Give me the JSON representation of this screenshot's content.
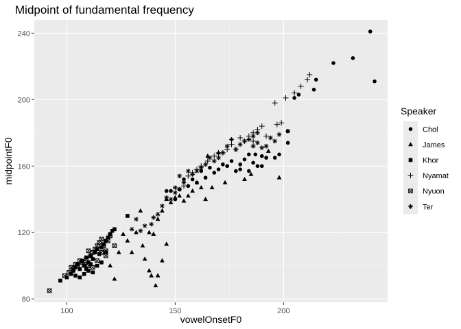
{
  "chart_data": {
    "type": "scatter",
    "title": "Midpoint of fundamental frequency",
    "xlabel": "vowelOnsetF0",
    "ylabel": "midpointF0",
    "xlim": [
      85,
      248
    ],
    "ylim": [
      78,
      248
    ],
    "x_ticks": [
      100,
      150,
      200
    ],
    "y_ticks": [
      80,
      120,
      160,
      200,
      240
    ],
    "grid": true,
    "legend": {
      "title": "Speaker",
      "placement": "right"
    },
    "series": [
      {
        "name": "Chol",
        "shape": "circle",
        "points": [
          [
            240,
            241
          ],
          [
            242,
            211
          ],
          [
            232,
            225
          ],
          [
            223,
            222
          ],
          [
            215,
            212
          ],
          [
            214,
            206
          ],
          [
            207,
            203
          ],
          [
            205,
            201
          ],
          [
            202,
            181
          ],
          [
            202,
            174
          ],
          [
            198,
            167
          ],
          [
            196,
            165
          ],
          [
            192,
            165
          ],
          [
            190,
            166
          ],
          [
            190,
            160
          ],
          [
            187,
            167
          ],
          [
            186,
            162
          ],
          [
            184,
            157
          ],
          [
            182,
            164
          ],
          [
            180,
            161
          ],
          [
            178,
            157
          ],
          [
            176,
            163
          ],
          [
            174,
            160
          ],
          [
            172,
            161
          ],
          [
            170,
            158
          ],
          [
            168,
            156
          ],
          [
            166,
            159
          ],
          [
            164,
            153
          ],
          [
            162,
            157
          ],
          [
            160,
            150
          ],
          [
            158,
            152
          ],
          [
            156,
            148
          ],
          [
            154,
            152
          ],
          [
            152,
            146
          ],
          [
            148,
            145
          ],
          [
            150,
            140
          ],
          [
            146,
            145
          ],
          [
            188,
            160
          ],
          [
            184,
            167
          ],
          [
            180,
            158
          ]
        ]
      },
      {
        "name": "James",
        "shape": "triangle",
        "points": [
          [
            198,
            153
          ],
          [
            193,
            169
          ],
          [
            185,
            155
          ],
          [
            182,
            152
          ],
          [
            173,
            150
          ],
          [
            170,
            168
          ],
          [
            167,
            147
          ],
          [
            165,
            166
          ],
          [
            160,
            150
          ],
          [
            158,
            145
          ],
          [
            156,
            142
          ],
          [
            154,
            139
          ],
          [
            152,
            142
          ],
          [
            150,
            141
          ],
          [
            148,
            138
          ],
          [
            146,
            140
          ],
          [
            144,
            133
          ],
          [
            142,
            128
          ],
          [
            140,
            119
          ],
          [
            139,
            94
          ],
          [
            138,
            97
          ],
          [
            136,
            104
          ],
          [
            135,
            112
          ],
          [
            134,
            133
          ],
          [
            132,
            120
          ],
          [
            130,
            108
          ],
          [
            128,
            115
          ],
          [
            126,
            119
          ],
          [
            124,
            108
          ],
          [
            122,
            92
          ],
          [
            120,
            100
          ],
          [
            146,
            113
          ],
          [
            142,
            94
          ],
          [
            144,
            103
          ],
          [
            141,
            88
          ],
          [
            138,
            120
          ],
          [
            162,
            147
          ],
          [
            164,
            140
          ]
        ]
      },
      {
        "name": "Khor",
        "shape": "square",
        "points": [
          [
            97,
            91
          ],
          [
            100,
            93
          ],
          [
            102,
            95
          ],
          [
            103,
            97
          ],
          [
            104,
            99
          ],
          [
            105,
            101
          ],
          [
            106,
            98
          ],
          [
            107,
            103
          ],
          [
            108,
            100
          ],
          [
            109,
            105
          ],
          [
            110,
            102
          ],
          [
            111,
            106
          ],
          [
            112,
            104
          ],
          [
            113,
            108
          ],
          [
            114,
            110
          ],
          [
            115,
            107
          ],
          [
            116,
            111
          ],
          [
            117,
            113
          ],
          [
            118,
            115
          ],
          [
            119,
            117
          ],
          [
            120,
            119
          ],
          [
            121,
            121
          ],
          [
            122,
            122
          ],
          [
            128,
            130
          ],
          [
            110,
            97
          ],
          [
            112,
            96
          ],
          [
            114,
            100
          ],
          [
            106,
            93
          ],
          [
            108,
            95
          ],
          [
            116,
            102
          ],
          [
            118,
            108
          ],
          [
            104,
            94
          ],
          [
            111,
            101
          ],
          [
            109,
            98
          ]
        ]
      },
      {
        "name": "Nyamat",
        "shape": "plus",
        "points": [
          [
            212,
            215
          ],
          [
            211,
            212
          ],
          [
            208,
            208
          ],
          [
            205,
            204
          ],
          [
            201,
            201
          ],
          [
            196,
            198
          ],
          [
            199,
            186
          ],
          [
            197,
            185
          ],
          [
            190,
            184
          ],
          [
            188,
            182
          ],
          [
            186,
            180
          ],
          [
            184,
            178
          ],
          [
            182,
            175
          ],
          [
            180,
            177
          ],
          [
            178,
            170
          ],
          [
            176,
            173
          ],
          [
            174,
            170
          ],
          [
            172,
            168
          ],
          [
            170,
            168
          ],
          [
            168,
            166
          ],
          [
            165,
            163
          ],
          [
            162,
            160
          ],
          [
            160,
            158
          ],
          [
            158,
            156
          ],
          [
            156,
            154
          ],
          [
            154,
            148
          ],
          [
            192,
            178
          ],
          [
            186,
            175
          ]
        ]
      },
      {
        "name": "Nyuon",
        "shape": "boxtimes",
        "points": [
          [
            92,
            85
          ],
          [
            99,
            94
          ],
          [
            101,
            96
          ],
          [
            103,
            98
          ],
          [
            105,
            100
          ],
          [
            107,
            102
          ],
          [
            109,
            104
          ],
          [
            110,
            109
          ],
          [
            111,
            106
          ],
          [
            112,
            108
          ],
          [
            113,
            110
          ],
          [
            114,
            112
          ],
          [
            115,
            114
          ],
          [
            116,
            116
          ],
          [
            117,
            112
          ],
          [
            118,
            109
          ],
          [
            119,
            115
          ],
          [
            120,
            118
          ],
          [
            122,
            112
          ],
          [
            108,
            101
          ],
          [
            106,
            103
          ],
          [
            104,
            101
          ],
          [
            112,
            99
          ],
          [
            114,
            103
          ],
          [
            110,
            100
          ],
          [
            116,
            108
          ],
          [
            118,
            106
          ],
          [
            102,
            99
          ]
        ]
      },
      {
        "name": "Ter",
        "shape": "asterisk",
        "points": [
          [
            202,
            181
          ],
          [
            198,
            179
          ],
          [
            196,
            175
          ],
          [
            194,
            177
          ],
          [
            192,
            172
          ],
          [
            190,
            171
          ],
          [
            188,
            180
          ],
          [
            186,
            178
          ],
          [
            184,
            176
          ],
          [
            182,
            175
          ],
          [
            180,
            173
          ],
          [
            178,
            170
          ],
          [
            176,
            176
          ],
          [
            174,
            172
          ],
          [
            172,
            168
          ],
          [
            170,
            165
          ],
          [
            168,
            163
          ],
          [
            166,
            165
          ],
          [
            164,
            161
          ],
          [
            162,
            159
          ],
          [
            160,
            157
          ],
          [
            158,
            155
          ],
          [
            156,
            157
          ],
          [
            154,
            150
          ],
          [
            152,
            146
          ],
          [
            150,
            144
          ],
          [
            148,
            140
          ],
          [
            146,
            141
          ],
          [
            144,
            136
          ],
          [
            142,
            131
          ],
          [
            140,
            129
          ],
          [
            139,
            125
          ],
          [
            136,
            124
          ],
          [
            134,
            121
          ],
          [
            132,
            128
          ],
          [
            130,
            122
          ],
          [
            150,
            147
          ],
          [
            152,
            154
          ],
          [
            186,
            172
          ],
          [
            188,
            174
          ]
        ]
      }
    ]
  }
}
